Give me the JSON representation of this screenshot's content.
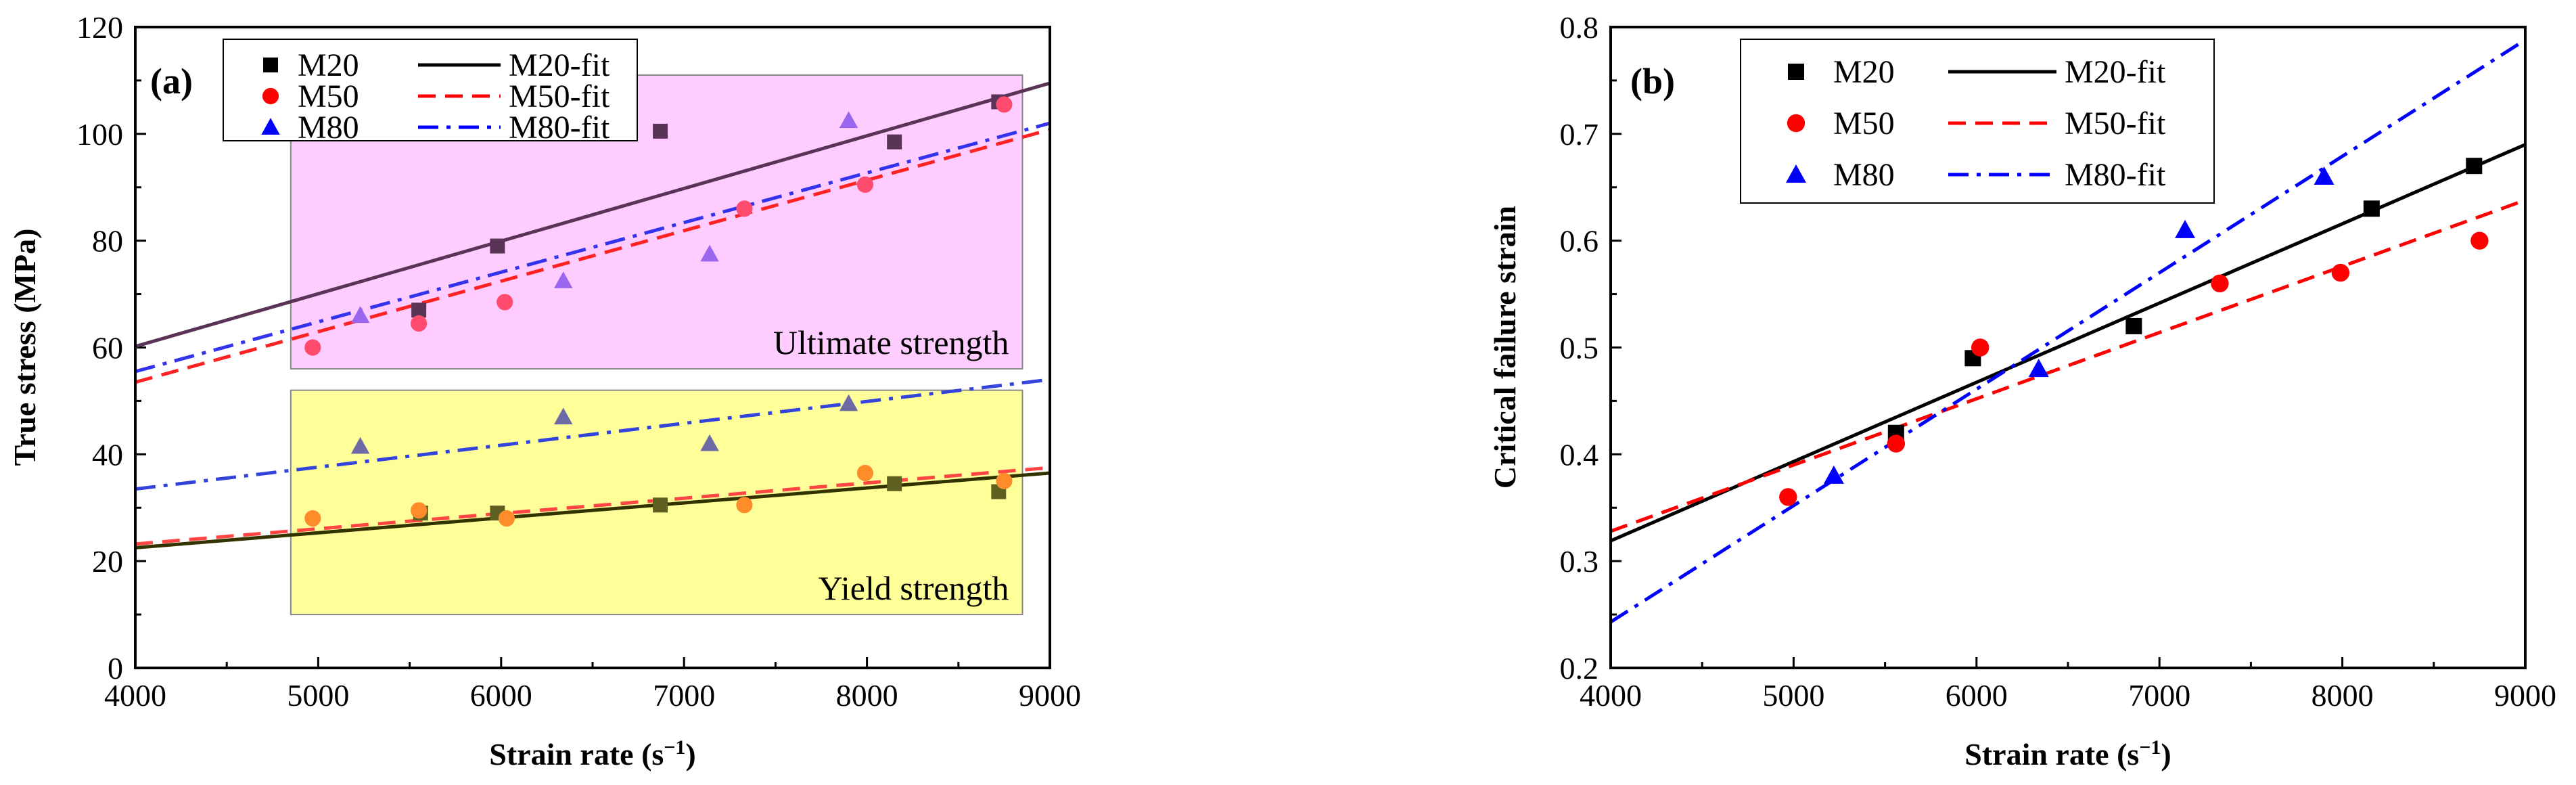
{
  "chart_data": [
    {
      "type": "scatter",
      "panel_label": "(a)",
      "xlabel": "Strain rate (s",
      "xlabel_sup": "−1",
      "xlabel_close": ")",
      "ylabel": "True stress (MPa)",
      "xlim": [
        4000,
        9000
      ],
      "ylim": [
        0,
        120
      ],
      "xticks": [
        4000,
        5000,
        6000,
        7000,
        8000,
        9000
      ],
      "yticks": [
        0,
        20,
        40,
        60,
        80,
        100,
        120
      ],
      "regions": [
        {
          "label": "Ultimate strength",
          "x_range": [
            4850,
            8850
          ],
          "y_range": [
            56,
            111
          ],
          "color": "#ffccff"
        },
        {
          "label": "Yield strength",
          "x_range": [
            4850,
            8850
          ],
          "y_range": [
            10,
            52
          ],
          "color": "#ffff99"
        }
      ],
      "legend": {
        "placement": "top-left",
        "entries": [
          {
            "name": "M20",
            "fit_name": "M20-fit"
          },
          {
            "name": "M50",
            "fit_name": "M50-fit"
          },
          {
            "name": "M80",
            "fit_name": "M80-fit"
          }
        ]
      },
      "series": [
        {
          "name": "M20 ultimate",
          "group": "M20",
          "marker": "square",
          "color": "#5a3456",
          "points": [
            [
              5550,
              67
            ],
            [
              5980,
              79
            ],
            [
              6870,
              100.5
            ],
            [
              8150,
              98.5
            ],
            [
              8720,
              106
            ]
          ]
        },
        {
          "name": "M50 ultimate",
          "group": "M50",
          "marker": "circle",
          "color": "#ff4b6e",
          "points": [
            [
              4970,
              60
            ],
            [
              5550,
              64.5
            ],
            [
              6020,
              68.5
            ],
            [
              7330,
              86
            ],
            [
              7990,
              90.5
            ],
            [
              8750,
              105.5
            ]
          ]
        },
        {
          "name": "M80 ultimate",
          "group": "M80",
          "marker": "triangle",
          "color": "#9a66ee",
          "points": [
            [
              5230,
              66
            ],
            [
              6340,
              72.5
            ],
            [
              7140,
              77.5
            ],
            [
              7900,
              102.5
            ]
          ]
        },
        {
          "name": "M20 yield",
          "group": "M20",
          "marker": "square",
          "color": "#5e6020",
          "points": [
            [
              5560,
              29
            ],
            [
              5980,
              29
            ],
            [
              6870,
              30.5
            ],
            [
              8150,
              34.5
            ],
            [
              8720,
              33
            ]
          ]
        },
        {
          "name": "M50 yield",
          "group": "M50",
          "marker": "circle",
          "color": "#ff8c2a",
          "points": [
            [
              4970,
              28
            ],
            [
              5550,
              29.5
            ],
            [
              6030,
              28
            ],
            [
              7330,
              30.5
            ],
            [
              7990,
              36.5
            ],
            [
              8750,
              35
            ]
          ]
        },
        {
          "name": "M80 yield",
          "group": "M80",
          "marker": "triangle",
          "color": "#6e6aa6",
          "points": [
            [
              5230,
              41.5
            ],
            [
              6340,
              47
            ],
            [
              7140,
              42
            ],
            [
              7900,
              49.5
            ]
          ]
        }
      ],
      "fits": [
        {
          "name": "M20-fit ultimate",
          "style": "solid",
          "color": "#5a3456",
          "points": [
            [
              4000,
              60.2
            ],
            [
              9000,
              109.5
            ]
          ]
        },
        {
          "name": "M50-fit ultimate",
          "style": "dashed",
          "color": "#ff2222",
          "points": [
            [
              4000,
              53.5
            ],
            [
              9000,
              100.8
            ]
          ]
        },
        {
          "name": "M80-fit ultimate",
          "style": "dashdot",
          "color": "#3333ee",
          "points": [
            [
              4000,
              55.5
            ],
            [
              9000,
              102
            ]
          ]
        },
        {
          "name": "M20-fit yield",
          "style": "solid",
          "color": "#333300",
          "points": [
            [
              4000,
              22.5
            ],
            [
              9000,
              36.5
            ]
          ]
        },
        {
          "name": "M50-fit yield",
          "style": "dashed",
          "color": "#ff4444",
          "points": [
            [
              4000,
              23.2
            ],
            [
              9000,
              37.5
            ]
          ]
        },
        {
          "name": "M80-fit yield",
          "style": "dashdot",
          "color": "#3344dd",
          "points": [
            [
              4000,
              33.5
            ],
            [
              9000,
              54
            ]
          ]
        }
      ]
    },
    {
      "type": "scatter",
      "panel_label": "(b)",
      "xlabel": "Strain rate (s",
      "xlabel_sup": "−1",
      "xlabel_close": ")",
      "ylabel": "Critical failure strain",
      "xlim": [
        4000,
        9000
      ],
      "ylim": [
        0.2,
        0.8
      ],
      "xticks": [
        4000,
        5000,
        6000,
        7000,
        8000,
        9000
      ],
      "yticks": [
        0.2,
        0.3,
        0.4,
        0.5,
        0.6,
        0.7,
        0.8
      ],
      "legend": {
        "placement": "top-left",
        "entries": [
          {
            "name": "M20",
            "fit_name": "M20-fit"
          },
          {
            "name": "M50",
            "fit_name": "M50-fit"
          },
          {
            "name": "M80",
            "fit_name": "M80-fit"
          }
        ]
      },
      "series": [
        {
          "name": "M20",
          "group": "M20",
          "marker": "square",
          "color": "#000000",
          "points": [
            [
              5560,
              0.42
            ],
            [
              5980,
              0.49
            ],
            [
              6860,
              0.52
            ],
            [
              8160,
              0.63
            ],
            [
              8720,
              0.67
            ]
          ]
        },
        {
          "name": "M50",
          "group": "M50",
          "marker": "circle",
          "color": "#ff0000",
          "points": [
            [
              4970,
              0.36
            ],
            [
              5560,
              0.41
            ],
            [
              6020,
              0.5
            ],
            [
              7330,
              0.56
            ],
            [
              7990,
              0.57
            ],
            [
              8750,
              0.6
            ]
          ]
        },
        {
          "name": "M80",
          "group": "M80",
          "marker": "triangle",
          "color": "#0000ff",
          "points": [
            [
              5220,
              0.38
            ],
            [
              6340,
              0.48
            ],
            [
              7140,
              0.61
            ],
            [
              7900,
              0.66
            ]
          ]
        }
      ],
      "fits": [
        {
          "name": "M20-fit",
          "style": "solid",
          "color": "#000000",
          "points": [
            [
              4000,
              0.319
            ],
            [
              9000,
              0.69
            ]
          ]
        },
        {
          "name": "M50-fit",
          "style": "dashed",
          "color": "#ff0000",
          "points": [
            [
              4000,
              0.328
            ],
            [
              9000,
              0.638
            ]
          ]
        },
        {
          "name": "M80-fit",
          "style": "dashdot",
          "color": "#0000ff",
          "points": [
            [
              4000,
              0.243
            ],
            [
              9000,
              0.788
            ]
          ]
        }
      ]
    }
  ]
}
